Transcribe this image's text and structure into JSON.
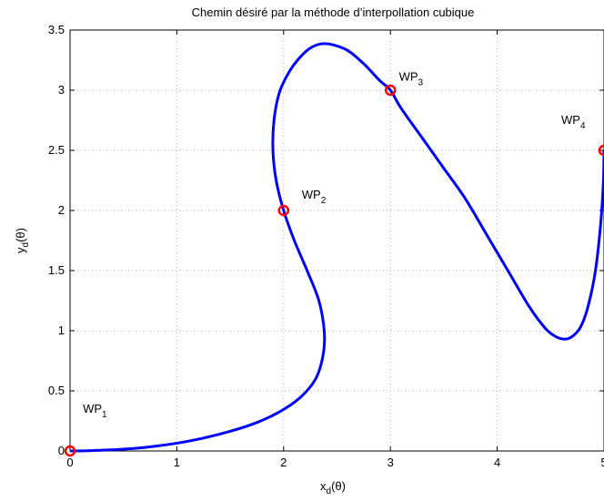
{
  "chart_data": {
    "type": "line",
    "title": "Chemin désiré par la méthode d’interpollation cubique",
    "xlabel": {
      "main": "x",
      "sub": "d",
      "tail": "(θ)"
    },
    "ylabel": {
      "main": "y",
      "sub": "d",
      "tail": "(θ)"
    },
    "xlim": [
      0,
      5
    ],
    "ylim": [
      0,
      3.5
    ],
    "grid": true,
    "xticks": [
      0,
      1,
      2,
      3,
      4,
      5
    ],
    "xtick_labels": [
      "0",
      "1",
      "2",
      "3",
      "4",
      "5"
    ],
    "yticks": [
      0,
      0.5,
      1,
      1.5,
      2,
      2.5,
      3,
      3.5
    ],
    "ytick_labels": [
      "0",
      "0.5",
      "1",
      "1.5",
      "2",
      "2.5",
      "3",
      "3.5"
    ],
    "path_color": "#0000ff",
    "marker_color": "#ff0000",
    "path": [
      [
        0,
        0
      ],
      [
        0.2,
        0.003
      ],
      [
        0.5,
        0.015
      ],
      [
        0.8,
        0.04
      ],
      [
        1.1,
        0.08
      ],
      [
        1.4,
        0.14
      ],
      [
        1.7,
        0.22
      ],
      [
        1.95,
        0.32
      ],
      [
        2.15,
        0.44
      ],
      [
        2.3,
        0.6
      ],
      [
        2.37,
        0.8
      ],
      [
        2.38,
        1.0
      ],
      [
        2.33,
        1.25
      ],
      [
        2.22,
        1.5
      ],
      [
        2.1,
        1.75
      ],
      [
        2.0,
        2.0
      ],
      [
        1.93,
        2.25
      ],
      [
        1.9,
        2.5
      ],
      [
        1.91,
        2.75
      ],
      [
        1.96,
        2.98
      ],
      [
        2.05,
        3.15
      ],
      [
        2.15,
        3.27
      ],
      [
        2.25,
        3.35
      ],
      [
        2.35,
        3.385
      ],
      [
        2.45,
        3.38
      ],
      [
        2.6,
        3.33
      ],
      [
        2.75,
        3.22
      ],
      [
        2.9,
        3.08
      ],
      [
        3.0,
        3.0
      ],
      [
        3.1,
        2.85
      ],
      [
        3.3,
        2.6
      ],
      [
        3.5,
        2.35
      ],
      [
        3.7,
        2.1
      ],
      [
        3.9,
        1.8
      ],
      [
        4.1,
        1.5
      ],
      [
        4.3,
        1.2
      ],
      [
        4.45,
        1.02
      ],
      [
        4.55,
        0.95
      ],
      [
        4.63,
        0.93
      ],
      [
        4.7,
        0.95
      ],
      [
        4.78,
        1.03
      ],
      [
        4.85,
        1.2
      ],
      [
        4.92,
        1.5
      ],
      [
        4.97,
        1.9
      ],
      [
        4.995,
        2.25
      ],
      [
        5.0,
        2.5
      ]
    ],
    "waypoints": [
      {
        "name": "WP",
        "sub": "1",
        "x": 0,
        "y": 0,
        "label_x": 0.12,
        "label_y": 0.32
      },
      {
        "name": "WP",
        "sub": "2",
        "x": 2,
        "y": 2,
        "label_x": 2.17,
        "label_y": 2.1
      },
      {
        "name": "WP",
        "sub": "3",
        "x": 3,
        "y": 3,
        "label_x": 3.08,
        "label_y": 3.08
      },
      {
        "name": "WP",
        "sub": "4",
        "x": 5,
        "y": 2.5,
        "label_x": 4.6,
        "label_y": 2.72
      }
    ]
  }
}
